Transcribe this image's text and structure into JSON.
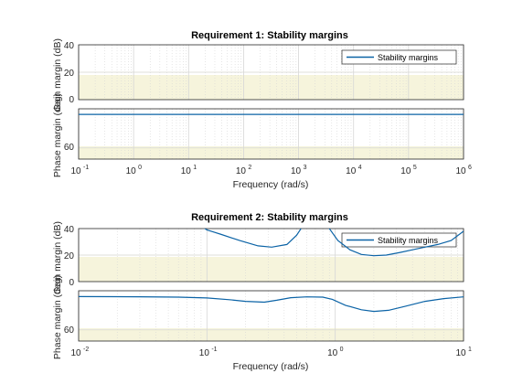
{
  "chart_data": [
    {
      "type": "line",
      "title": "Requirement 1: Stability margins",
      "xlabel": "Frequency  (rad/s)",
      "xscale": "log",
      "xlim": [
        0.1,
        1000000
      ],
      "x_ticks": [
        {
          "base": "10",
          "exp": "-1"
        },
        {
          "base": "10",
          "exp": "0"
        },
        {
          "base": "10",
          "exp": "1"
        },
        {
          "base": "10",
          "exp": "2"
        },
        {
          "base": "10",
          "exp": "3"
        },
        {
          "base": "10",
          "exp": "4"
        },
        {
          "base": "10",
          "exp": "5"
        },
        {
          "base": "10",
          "exp": "6"
        }
      ],
      "grid": true,
      "legend": {
        "entries": [
          "Stability margins"
        ],
        "location": "top-right"
      },
      "panels": [
        {
          "ylabel": "Gain margin (dB)",
          "ylim": [
            0,
            40
          ],
          "yticks": [
            "0",
            "20",
            "40"
          ],
          "shaded_region": {
            "from": 0,
            "to": 20
          },
          "series": [
            {
              "name": "Stability margins",
              "x": [],
              "y": []
            }
          ]
        },
        {
          "ylabel": "Phase margin (deg)",
          "ylim": [
            50,
            95
          ],
          "yticks": [
            "60"
          ],
          "shaded_region": {
            "from": 50,
            "to": 60
          },
          "series": [
            {
              "name": "Stability margins",
              "x": [
                0.1,
                1000000
              ],
              "y": [
                90,
                90
              ]
            }
          ]
        }
      ]
    },
    {
      "type": "line",
      "title": "Requirement 2: Stability margins",
      "xlabel": "Frequency  (rad/s)",
      "xscale": "log",
      "xlim": [
        0.01,
        10
      ],
      "x_ticks": [
        {
          "base": "10",
          "exp": "-2"
        },
        {
          "base": "10",
          "exp": "-1"
        },
        {
          "base": "10",
          "exp": "0"
        },
        {
          "base": "10",
          "exp": "1"
        }
      ],
      "grid": true,
      "legend": {
        "entries": [
          "Stability margins"
        ],
        "location": "top-right"
      },
      "panels": [
        {
          "ylabel": "Gain margin (dB)",
          "ylim": [
            0,
            40
          ],
          "yticks": [
            "0",
            "20",
            "40"
          ],
          "shaded_region": {
            "from": 0,
            "to": 20
          },
          "series": [
            {
              "name": "Stability margins",
              "x": [
                0.09,
                0.1,
                0.13,
                0.18,
                0.25,
                0.32,
                0.42,
                0.5,
                0.55,
                0.58
              ],
              "y": [
                42,
                39,
                35.5,
                31,
                27,
                26,
                28,
                35,
                41,
                48
              ]
            },
            {
              "name": "Stability margins",
              "x": [
                0.82,
                0.9,
                1.05,
                1.3,
                1.6,
                2.0,
                2.5,
                3.2,
                4.0,
                5.0,
                6.3,
                8.0,
                10.0
              ],
              "y": [
                48,
                40,
                31,
                24,
                20.5,
                19.5,
                20,
                22,
                24,
                26,
                28,
                31,
                38
              ]
            }
          ]
        },
        {
          "ylabel": "Phase margin (deg)",
          "ylim": [
            50,
            95
          ],
          "yticks": [
            "60"
          ],
          "shaded_region": {
            "from": 50,
            "to": 60
          },
          "series": [
            {
              "name": "Stability margins",
              "x": [
                0.01,
                0.03,
                0.06,
                0.1,
                0.15,
                0.2,
                0.28,
                0.35,
                0.45,
                0.6,
                0.8,
                0.95,
                1.2,
                1.6,
                2.0,
                2.6,
                3.5,
                5.0,
                7.0,
                10.0
              ],
              "y": [
                89.8,
                89.6,
                89.3,
                88.5,
                87,
                85.5,
                84.8,
                86.5,
                88.8,
                89.5,
                89.3,
                87.3,
                82,
                78,
                76.5,
                77.5,
                81,
                85.5,
                88,
                89.5
              ]
            }
          ]
        }
      ]
    }
  ]
}
